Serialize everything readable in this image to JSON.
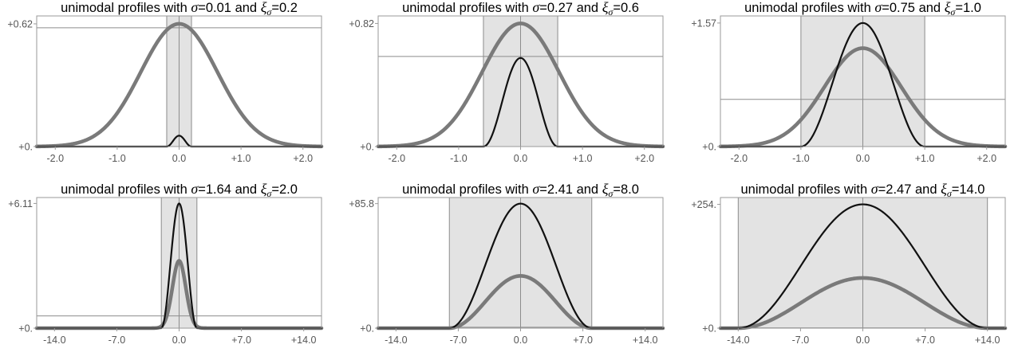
{
  "chart_data": [
    {
      "type": "line",
      "title": {
        "prefix": "unimodal profiles with ",
        "sigma_symbol": "σ",
        "sigma_value": "=0.01",
        "connector": " and ",
        "xi_symbol": "ξ",
        "xi_subscript": "σ",
        "xi_value": "=0.2"
      },
      "sigma": 0.01,
      "xi": 0.2,
      "xlim": [
        -2.3,
        2.3
      ],
      "ylim": [
        0,
        0.66
      ],
      "x_ticks": [
        -2,
        -1,
        0,
        1,
        2
      ],
      "x_tick_labels": [
        "-2.0",
        "-1.0",
        "0.0",
        "+1.0",
        "+2.0"
      ],
      "y_ticks": [
        0,
        0.62
      ],
      "y_tick_labels": [
        "+0.",
        "+0.62"
      ],
      "shaded_band": [
        -0.2,
        0.2
      ],
      "hline": 0.6,
      "series": [
        {
          "style": "thick-gray",
          "shape": "gaussian",
          "peak": 0.62,
          "width": 0.62
        },
        {
          "style": "thin-black",
          "shape": "arch",
          "peak": 0.055,
          "support": [
            -0.2,
            0.2
          ]
        }
      ]
    },
    {
      "type": "line",
      "title": {
        "prefix": "unimodal profiles with ",
        "sigma_symbol": "σ",
        "sigma_value": "=0.27",
        "connector": " and ",
        "xi_symbol": "ξ",
        "xi_subscript": "σ",
        "xi_value": "=0.6"
      },
      "sigma": 0.27,
      "xi": 0.6,
      "xlim": [
        -2.3,
        2.3
      ],
      "ylim": [
        0,
        0.87
      ],
      "x_ticks": [
        -2,
        -1,
        0,
        1,
        2
      ],
      "x_tick_labels": [
        "-2.0",
        "-1.0",
        "0.0",
        "+1.0",
        "+2.0"
      ],
      "y_ticks": [
        0,
        0.82
      ],
      "y_tick_labels": [
        "+0.",
        "+0.82"
      ],
      "shaded_band": [
        -0.6,
        0.6
      ],
      "hline": 0.6,
      "series": [
        {
          "style": "thick-gray",
          "shape": "gaussian",
          "peak": 0.82,
          "width": 0.62
        },
        {
          "style": "thin-black",
          "shape": "arch",
          "peak": 0.59,
          "support": [
            -0.6,
            0.6
          ]
        }
      ]
    },
    {
      "type": "line",
      "title": {
        "prefix": "unimodal profiles with ",
        "sigma_symbol": "σ",
        "sigma_value": "=0.75",
        "connector": " and ",
        "xi_symbol": "ξ",
        "xi_subscript": "σ",
        "xi_value": "=1.0"
      },
      "sigma": 0.75,
      "xi": 1.0,
      "xlim": [
        -2.3,
        2.3
      ],
      "ylim": [
        0,
        1.66
      ],
      "x_ticks": [
        -2,
        -1,
        0,
        1,
        2
      ],
      "x_tick_labels": [
        "-2.0",
        "-1.0",
        "0.0",
        "+1.0",
        "+2.0"
      ],
      "y_ticks": [
        0,
        1.57
      ],
      "y_tick_labels": [
        "+0.",
        "+1.57"
      ],
      "shaded_band": [
        -1.0,
        1.0
      ],
      "hline": 0.6,
      "series": [
        {
          "style": "thick-gray",
          "shape": "gaussian",
          "peak": 1.25,
          "width": 0.62
        },
        {
          "style": "thin-black",
          "shape": "arch",
          "peak": 1.57,
          "support": [
            -1.0,
            1.0
          ]
        }
      ]
    },
    {
      "type": "line",
      "title": {
        "prefix": "unimodal profiles with ",
        "sigma_symbol": "σ",
        "sigma_value": "=1.64",
        "connector": " and ",
        "xi_symbol": "ξ",
        "xi_subscript": "σ",
        "xi_value": "=2.0"
      },
      "sigma": 1.64,
      "xi": 2.0,
      "xlim": [
        -16.0,
        16.0
      ],
      "ylim": [
        0,
        6.4
      ],
      "x_ticks": [
        -14,
        -7,
        0,
        7,
        14
      ],
      "x_tick_labels": [
        "-14.0",
        "-7.0",
        "0.0",
        "+7.0",
        "+14.0"
      ],
      "y_ticks": [
        0,
        6.11
      ],
      "y_tick_labels": [
        "+0.",
        "+6.11"
      ],
      "shaded_band": [
        -2.0,
        2.0
      ],
      "hline": 0.6,
      "series": [
        {
          "style": "thick-gray",
          "shape": "gaussian",
          "peak": 3.3,
          "width": 0.75
        },
        {
          "style": "thin-black",
          "shape": "arch",
          "peak": 6.11,
          "support": [
            -2.0,
            2.0
          ]
        }
      ]
    },
    {
      "type": "line",
      "title": {
        "prefix": "unimodal profiles with ",
        "sigma_symbol": "σ",
        "sigma_value": "=2.41",
        "connector": " and ",
        "xi_symbol": "ξ",
        "xi_subscript": "σ",
        "xi_value": "=8.0"
      },
      "sigma": 2.41,
      "xi": 8.0,
      "xlim": [
        -16.0,
        16.0
      ],
      "ylim": [
        0,
        90
      ],
      "x_ticks": [
        -14,
        -7,
        0,
        7,
        14
      ],
      "x_tick_labels": [
        "-14.0",
        "-7.0",
        "0.0",
        "+7.0",
        "+14.0"
      ],
      "y_ticks": [
        0,
        85.8
      ],
      "y_tick_labels": [
        "+0.",
        "+85.8"
      ],
      "shaded_band": [
        -8.0,
        8.0
      ],
      "hline": 0.6,
      "series": [
        {
          "style": "thick-gray",
          "shape": "arch",
          "peak": 36.0,
          "support": [
            -8.0,
            8.0
          ]
        },
        {
          "style": "thin-black",
          "shape": "arch",
          "peak": 85.8,
          "support": [
            -8.0,
            8.0
          ]
        }
      ]
    },
    {
      "type": "line",
      "title": {
        "prefix": "unimodal profiles with ",
        "sigma_symbol": "σ",
        "sigma_value": "=2.47",
        "connector": " and ",
        "xi_symbol": "ξ",
        "xi_subscript": "σ",
        "xi_value": "=14.0"
      },
      "sigma": 2.47,
      "xi": 14.0,
      "xlim": [
        -16.0,
        16.0
      ],
      "ylim": [
        0,
        268
      ],
      "x_ticks": [
        -14,
        -7,
        0,
        7,
        14
      ],
      "x_tick_labels": [
        "-14.0",
        "-7.0",
        "0.0",
        "+7.0",
        "+14.0"
      ],
      "y_ticks": [
        0,
        254
      ],
      "y_tick_labels": [
        "+0.",
        "+254."
      ],
      "shaded_band": [
        -14.0,
        14.0
      ],
      "hline": 0.6,
      "series": [
        {
          "style": "thick-gray",
          "shape": "arch",
          "peak": 103.0,
          "support": [
            -14.0,
            14.0
          ]
        },
        {
          "style": "thin-black",
          "shape": "arch",
          "peak": 254.0,
          "support": [
            -14.0,
            14.0
          ]
        }
      ]
    }
  ],
  "colors": {
    "thick_series": "#7a7a7a",
    "thin_series": "#111111",
    "band_fill": "#e3e3e3",
    "frame": "#9a9a9a",
    "reference_lines": "#8c8c8c",
    "tick_text": "#555555"
  }
}
